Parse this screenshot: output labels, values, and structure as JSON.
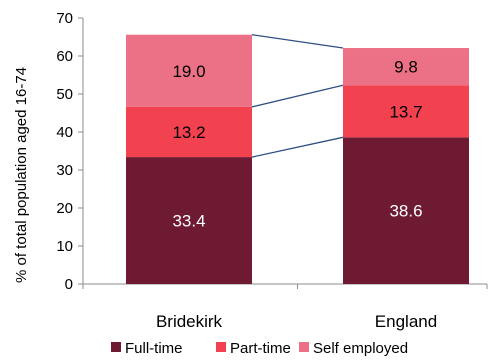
{
  "chart_data": {
    "type": "bar",
    "stacked": true,
    "categories": [
      "Bridekirk",
      "England"
    ],
    "series": [
      {
        "name": "Full-time",
        "values": [
          33.4,
          38.6
        ],
        "color": "#6e1a33",
        "label_color": "#ffffff"
      },
      {
        "name": "Part-time",
        "values": [
          13.2,
          13.7
        ],
        "color": "#f2414f",
        "label_color": "#000000"
      },
      {
        "name": "Self employed",
        "values": [
          19.0,
          9.8
        ],
        "color": "#ec7186",
        "label_color": "#000000"
      }
    ],
    "ylabel": "% of total population aged 16-74",
    "ylim": [
      0,
      70
    ],
    "yticks": [
      0,
      10,
      20,
      30,
      40,
      50,
      60,
      70
    ],
    "connector_color": "#2f4f84",
    "grid": false,
    "legend": "bottom"
  }
}
